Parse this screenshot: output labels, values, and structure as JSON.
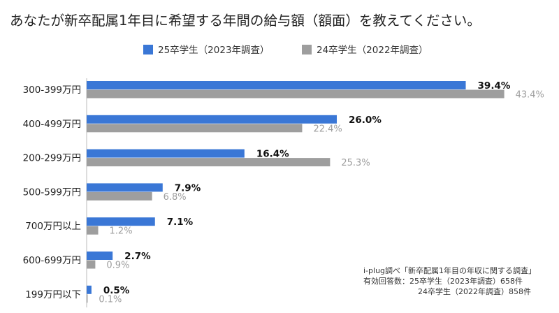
{
  "chart_data": {
    "type": "bar",
    "orientation": "horizontal",
    "title": "あなたが新卒配属1年目に希望する年間の給与額（額面）を教えてください。",
    "categories": [
      "300-399万円",
      "400-499万円",
      "200-299万円",
      "500-599万円",
      "700万円以上",
      "600-699万円",
      "199万円以下"
    ],
    "series": [
      {
        "name": "25卒学生（2023年調査）",
        "color": "#3a77d6",
        "label_color": "#111111",
        "values": [
          39.4,
          26.0,
          16.4,
          7.9,
          7.1,
          2.7,
          0.5
        ]
      },
      {
        "name": "24卒学生（2022年調査）",
        "color": "#9e9e9e",
        "label_color": "#9e9e9e",
        "values": [
          43.4,
          22.4,
          25.3,
          6.8,
          1.2,
          0.9,
          0.1
        ]
      }
    ],
    "value_suffix": "%",
    "legend_position": "top",
    "grid": false,
    "xlim": [
      0,
      50
    ],
    "source_note": [
      "i-plug調べ「新卒配属1年目の年収に関する調査」",
      "有効回答数：25卒学生（2023年調査）658件",
      "24卒学生（2022年調査）858件"
    ]
  }
}
